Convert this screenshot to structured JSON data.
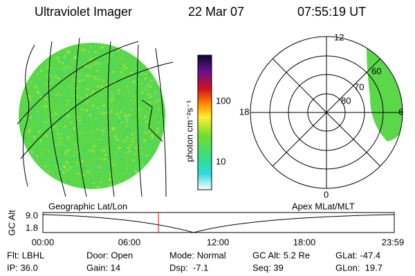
{
  "header": {
    "title": "Ultraviolet Imager",
    "date": "22 Mar 07",
    "time": "07:55:19 UT"
  },
  "colorbar": {
    "label": "photon cm⁻²s⁻¹",
    "ticks": [
      "100",
      "10"
    ]
  },
  "polar": {
    "mlt_labels": [
      "12",
      "18",
      "6",
      "0"
    ],
    "lat_labels": [
      "80",
      "70",
      "60"
    ]
  },
  "altitude": {
    "left_label": "Geographic Lat/Lon",
    "right_label": "Apex MLat/MLT",
    "axis_label": "GC Alt",
    "y_ticks": [
      "9.0",
      "1.8"
    ],
    "x_ticks": [
      "00:00",
      "06:00",
      "12:00",
      "18:00",
      "23:59"
    ]
  },
  "info": {
    "rows": [
      [
        "Flt: LBHL",
        "Door: Open",
        "Mode: Normal",
        "GC Alt: 5.2 Re",
        "GLat: -47.4"
      ],
      [
        "IP: 36.0",
        "Gain: 14",
        "Dsp:  -7.1",
        "Seq: 39",
        "GLon:  19.7"
      ]
    ]
  }
}
